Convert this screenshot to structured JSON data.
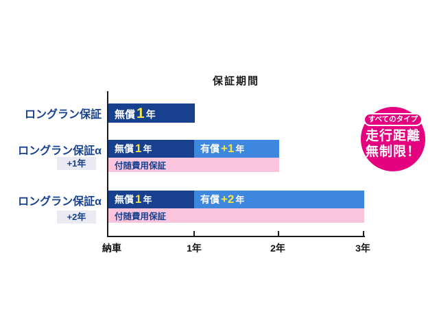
{
  "title": "保証期間",
  "rows": {
    "row1": {
      "label": "ロングラン保証",
      "free": {
        "word": "無償",
        "num": "1",
        "unit": "年"
      }
    },
    "row2": {
      "label": "ロングラン保証α",
      "sub": "+1年",
      "free": {
        "word": "無償",
        "num": "1",
        "unit": "年"
      },
      "paid": {
        "word": "有償",
        "num": "+1",
        "unit": "年"
      },
      "pink": "付随費用保証"
    },
    "row3": {
      "label": "ロングラン保証α",
      "sub": "+2年",
      "free": {
        "word": "無償",
        "num": "1",
        "unit": "年"
      },
      "paid": {
        "word": "有償",
        "num": "+2",
        "unit": "年"
      },
      "pink": "付随費用保証"
    }
  },
  "axis": {
    "origin": "納車",
    "t1": "1年",
    "t2": "2年",
    "t3": "3年"
  },
  "badge": {
    "pill": "すべてのタイプ",
    "line1": "走行距離",
    "line2": "無制限！"
  },
  "colors": {
    "free_bar": "#17418f",
    "paid_bar": "#3d87de",
    "ancillary_bar": "#fac4dc",
    "highlight_number": "#f5e549",
    "badge": "#e4007f",
    "label_text": "#17418f",
    "sub_box_bg": "#e9eaf2",
    "axis": "#1a1a1a"
  },
  "chart_data": {
    "type": "bar",
    "title": "保証期間",
    "xlabel": "",
    "ylabel": "",
    "x_ticks": [
      "納車",
      "1年",
      "2年",
      "3年"
    ],
    "x_range_years": [
      0,
      3
    ],
    "grid": false,
    "series": [
      {
        "name": "ロングラン保証",
        "bars": [
          {
            "label": "無償 1年",
            "start": 0,
            "end": 1,
            "kind": "free"
          }
        ]
      },
      {
        "name": "ロングラン保証α +1年",
        "bars": [
          {
            "label": "無償 1年",
            "start": 0,
            "end": 1,
            "kind": "free"
          },
          {
            "label": "有償 +1年",
            "start": 1,
            "end": 2,
            "kind": "paid"
          }
        ],
        "sub_bar": {
          "label": "付随費用保証",
          "start": 0,
          "end": 2
        }
      },
      {
        "name": "ロングラン保証α +2年",
        "bars": [
          {
            "label": "無償 1年",
            "start": 0,
            "end": 1,
            "kind": "free"
          },
          {
            "label": "有償 +2年",
            "start": 1,
            "end": 3,
            "kind": "paid"
          }
        ],
        "sub_bar": {
          "label": "付随費用保証",
          "start": 0,
          "end": 3
        }
      }
    ],
    "annotation": "すべてのタイプ 走行距離 無制限！",
    "legend_position": "none"
  }
}
